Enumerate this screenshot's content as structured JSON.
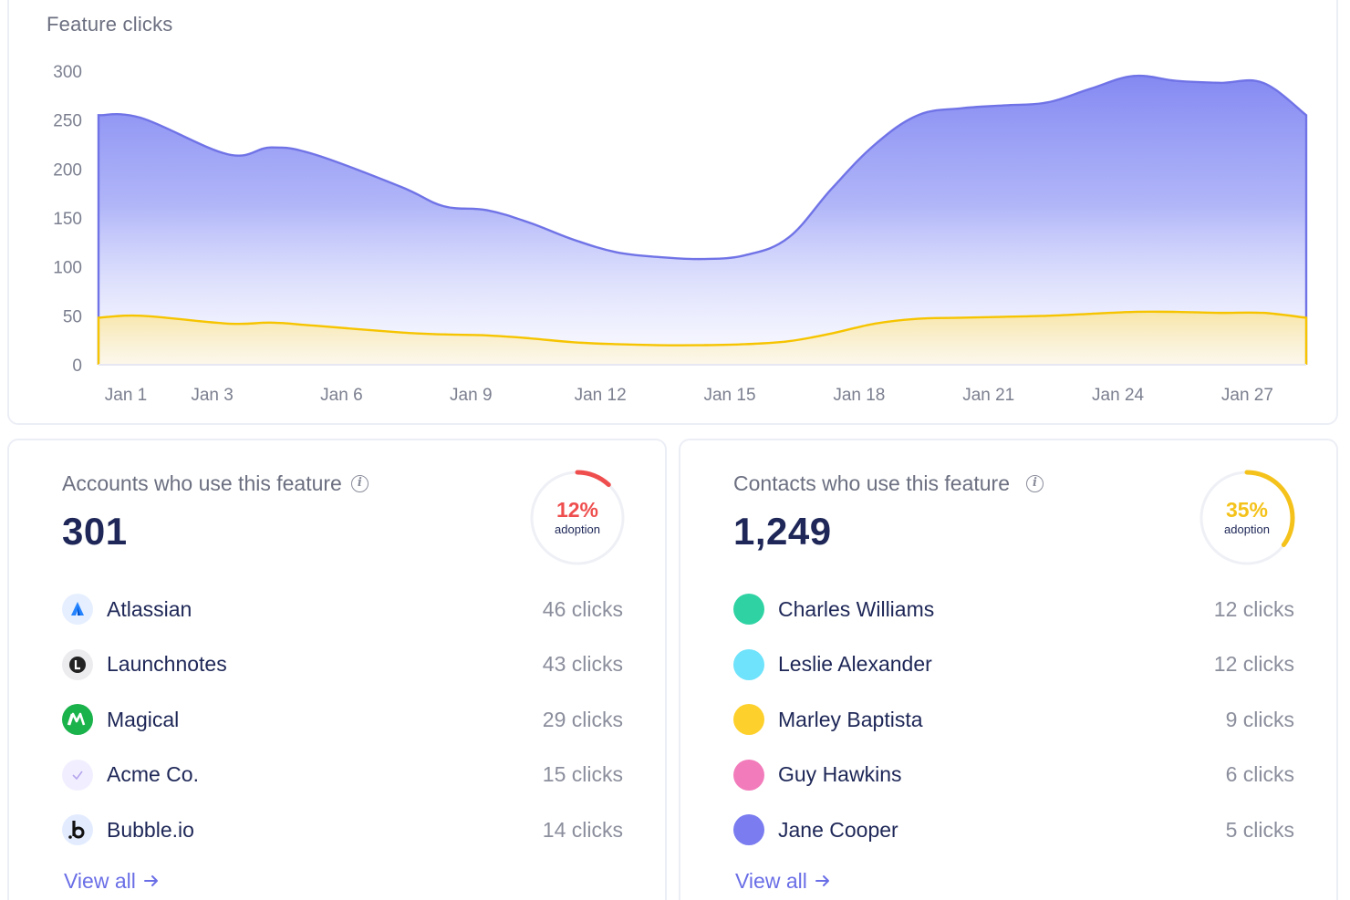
{
  "chart": {
    "title": "Feature clicks"
  },
  "chart_data": {
    "type": "area",
    "y_ticks": [
      "300",
      "250",
      "200",
      "150",
      "100",
      "50",
      "0"
    ],
    "ylim": [
      0,
      300
    ],
    "x_tick_labels": [
      "Jan 1",
      "Jan 3",
      "Jan 6",
      "Jan 9",
      "Jan 12",
      "Jan 15",
      "Jan 18",
      "Jan 21",
      "Jan 24",
      "Jan 27"
    ],
    "x_days": [
      0,
      2,
      5,
      8,
      11,
      14,
      17,
      20,
      23,
      26
    ],
    "xlim": [
      0,
      28
    ],
    "series": [
      {
        "color": "#7073e6",
        "x": [
          0,
          1,
          3,
          4,
          5,
          7,
          8,
          9,
          10,
          11,
          12,
          13,
          14,
          15,
          16,
          17,
          18,
          19,
          20,
          21,
          22,
          23,
          24,
          25,
          26,
          27,
          28
        ],
        "y": [
          255,
          252,
          215,
          222,
          215,
          182,
          162,
          158,
          145,
          128,
          115,
          110,
          108,
          112,
          130,
          180,
          225,
          255,
          262,
          265,
          268,
          282,
          295,
          290,
          288,
          288,
          255
        ]
      },
      {
        "color": "#f6c400",
        "x": [
          0,
          1,
          3,
          4,
          5,
          7,
          8,
          9,
          10,
          11,
          12,
          13,
          14,
          15,
          16,
          17,
          18,
          19,
          20,
          21,
          22,
          23,
          24,
          25,
          26,
          27,
          28
        ],
        "y": [
          48,
          50,
          42,
          43,
          40,
          33,
          31,
          30,
          27,
          23,
          21,
          20,
          20,
          21,
          24,
          32,
          42,
          47,
          48,
          49,
          50,
          52,
          54,
          54,
          53,
          53,
          48
        ]
      }
    ]
  },
  "accounts": {
    "title": "Accounts who use this feature",
    "total": "301",
    "adoption_pct": "12%",
    "adoption_value": 12,
    "adoption_label": "adoption",
    "adoption_color": "#ef4e4e",
    "items": [
      {
        "name": "Atlassian",
        "clicks": "46 clicks",
        "icon": "atlassian-logo"
      },
      {
        "name": "Launchnotes",
        "clicks": "43 clicks",
        "icon": "launchnotes-logo"
      },
      {
        "name": "Magical",
        "clicks": "29 clicks",
        "icon": "magical-logo"
      },
      {
        "name": "Acme Co.",
        "clicks": "15 clicks",
        "icon": "acme-logo"
      },
      {
        "name": "Bubble.io",
        "clicks": "14 clicks",
        "icon": "bubble-logo"
      }
    ],
    "view_all": "View all"
  },
  "contacts": {
    "title": "Contacts who use this feature",
    "total": "1,249",
    "adoption_pct": "35%",
    "adoption_value": 35,
    "adoption_label": "adoption",
    "adoption_color": "#f4c21a",
    "items": [
      {
        "name": "Charles Williams",
        "clicks": "12 clicks",
        "color": "#2fd3a3"
      },
      {
        "name": "Leslie Alexander",
        "clicks": "12 clicks",
        "color": "#6ee3fb"
      },
      {
        "name": "Marley Baptista",
        "clicks": "9 clicks",
        "color": "#fdd02b"
      },
      {
        "name": "Guy Hawkins",
        "clicks": "6 clicks",
        "color": "#f27cbb"
      },
      {
        "name": "Jane Cooper",
        "clicks": "5 clicks",
        "color": "#7a7cf0"
      }
    ],
    "view_all": "View all"
  },
  "colors": {
    "link": "#6a6ee6",
    "text_dark": "#1e2757",
    "text_muted": "#8b8e9c"
  }
}
